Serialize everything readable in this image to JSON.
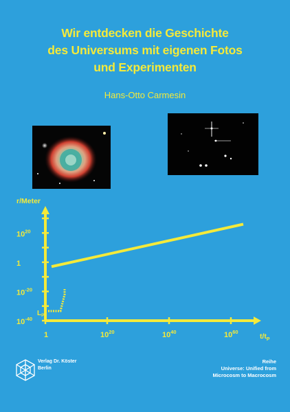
{
  "cover": {
    "title_lines": [
      "Wir entdecken die Geschichte",
      "des Universums mit eigenen Fotos",
      "und Experimenten"
    ],
    "author": "Hans-Otto Carmesin"
  },
  "publisher": {
    "line1": "Verlag Dr. Köster",
    "line2": "Berlin"
  },
  "series": {
    "label": "Reihe",
    "name_line1": "Universe: Unified from",
    "name_line2": "Microcosm to Macrocosm"
  },
  "colors": {
    "background": "#2da0dc",
    "accent": "#f4ea3a"
  },
  "chart_data": {
    "type": "line",
    "ylabel": "r/Meter",
    "xlabel": "t/t",
    "xlabel_sub": "P",
    "y_marker_label": "L",
    "y_marker_sub": "P",
    "x_ticks": [
      {
        "base": "1",
        "exp": ""
      },
      {
        "base": "10",
        "exp": "20"
      },
      {
        "base": "10",
        "exp": "40"
      },
      {
        "base": "10",
        "exp": "60"
      }
    ],
    "y_ticks": [
      {
        "base": "10",
        "exp": "-40"
      },
      {
        "base": "10",
        "exp": "-20"
      },
      {
        "base": "1",
        "exp": ""
      },
      {
        "base": "10",
        "exp": "20"
      }
    ],
    "x_log_range": [
      0,
      64
    ],
    "y_log_range": [
      -40,
      30
    ],
    "series": [
      {
        "x_log": [
          2,
          64
        ],
        "y_log": [
          -3,
          26
        ]
      }
    ]
  }
}
